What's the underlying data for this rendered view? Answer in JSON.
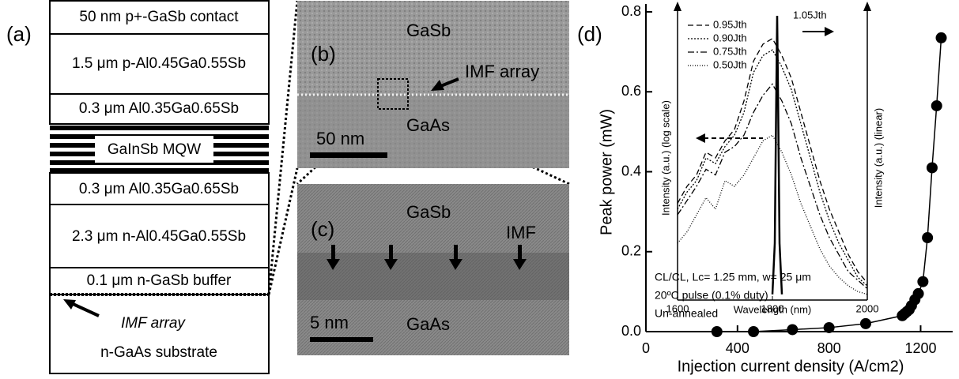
{
  "panel_a": {
    "label": "(a)",
    "layers": [
      "50 nm p+-GaSb contact",
      "1.5 μm p-Al0.45Ga0.55Sb",
      "0.3 μm Al0.35Ga0.65Sb",
      "GaInSb MQW",
      "0.3 μm Al0.35Ga0.65Sb",
      "2.3 μm n-Al0.45Ga0.55Sb",
      "0.1 μm n-GaSb buffer"
    ],
    "imf_label": "IMF array",
    "substrate": "n-GaAs substrate"
  },
  "panel_b": {
    "label": "(b)",
    "top": "GaSb",
    "bottom": "GaAs",
    "scale": "50 nm",
    "imf": "IMF array"
  },
  "panel_c": {
    "label": "(c)",
    "top": "GaSb",
    "bottom": "GaAs",
    "scale": "5 nm",
    "imf": "IMF"
  },
  "chart_data": {
    "type": "scatter",
    "panel_label": "(d)",
    "xlabel": "Injection current density (A/cm2)",
    "ylabel": "Peak power (mW)",
    "color": "#000000",
    "x": [
      310,
      470,
      640,
      800,
      960,
      1120,
      1130,
      1140,
      1150,
      1160,
      1175,
      1190,
      1210,
      1230,
      1250,
      1270,
      1290
    ],
    "values": [
      0.0,
      0.0,
      0.005,
      0.01,
      0.02,
      0.04,
      0.045,
      0.05,
      0.055,
      0.065,
      0.08,
      0.095,
      0.125,
      0.235,
      0.41,
      0.565,
      0.735
    ],
    "xlim": [
      0,
      1340
    ],
    "ylim": [
      0,
      0.8
    ],
    "xticks": [
      0,
      400,
      800,
      1200
    ],
    "yticks": [
      {
        "value": 0,
        "label": "0.0"
      },
      0.2,
      0.4,
      0.6,
      0.8
    ],
    "annotations": [
      "CL/CL, Lc= 1.25 mm, w= 25 μm",
      "20ºC pulse (0.1% duty)",
      "Un-annealed"
    ],
    "inset": {
      "type": "line",
      "xlabel": "Wavelength (nm)",
      "ylabel_left": "Intensity (a.u.) (log scale)",
      "ylabel_right": "Intensity (a.u.) (linear)",
      "xlim": [
        1600,
        2000
      ],
      "ylim": [
        0,
        1
      ],
      "xticks": [
        1600,
        1800,
        2000
      ],
      "series": [
        {
          "name": "0.95Jth",
          "dash": "7,4",
          "x": [
            1600,
            1620,
            1640,
            1660,
            1680,
            1700,
            1720,
            1740,
            1760,
            1780,
            1800,
            1820,
            1840,
            1860,
            1880,
            1900,
            1920,
            1940,
            1960,
            1980,
            2000
          ],
          "values": [
            0.34,
            0.4,
            0.44,
            0.52,
            0.5,
            0.56,
            0.6,
            0.7,
            0.84,
            0.9,
            0.92,
            0.86,
            0.78,
            0.66,
            0.54,
            0.42,
            0.32,
            0.24,
            0.16,
            0.1,
            0.06
          ]
        },
        {
          "name": "0.90Jth",
          "dash": "2,2",
          "x": [
            1600,
            1620,
            1640,
            1660,
            1680,
            1700,
            1720,
            1740,
            1760,
            1780,
            1800,
            1820,
            1840,
            1860,
            1880,
            1900,
            1920,
            1940,
            1960,
            1980,
            2000
          ],
          "values": [
            0.32,
            0.38,
            0.42,
            0.5,
            0.48,
            0.54,
            0.58,
            0.66,
            0.8,
            0.86,
            0.88,
            0.82,
            0.74,
            0.62,
            0.5,
            0.38,
            0.28,
            0.2,
            0.14,
            0.08,
            0.05
          ]
        },
        {
          "name": "0.75Jth",
          "dash": "8,3,2,3",
          "x": [
            1600,
            1620,
            1640,
            1660,
            1680,
            1700,
            1720,
            1740,
            1760,
            1780,
            1800,
            1820,
            1840,
            1860,
            1880,
            1900,
            1920,
            1940,
            1960,
            1980,
            2000
          ],
          "values": [
            0.3,
            0.35,
            0.4,
            0.46,
            0.44,
            0.52,
            0.54,
            0.58,
            0.66,
            0.72,
            0.76,
            0.7,
            0.62,
            0.5,
            0.4,
            0.3,
            0.22,
            0.16,
            0.1,
            0.07,
            0.04
          ]
        },
        {
          "name": "0.50Jth",
          "dash": "1,2",
          "x": [
            1600,
            1620,
            1640,
            1660,
            1680,
            1700,
            1720,
            1740,
            1760,
            1780,
            1800,
            1820,
            1840,
            1860,
            1880,
            1900,
            1920,
            1940,
            1960,
            1980,
            2000
          ],
          "values": [
            0.2,
            0.24,
            0.3,
            0.36,
            0.32,
            0.42,
            0.4,
            0.44,
            0.5,
            0.56,
            0.58,
            0.52,
            0.44,
            0.34,
            0.26,
            0.18,
            0.12,
            0.08,
            0.05,
            0.03,
            0.02
          ]
        },
        {
          "name": "1.05Jth",
          "dash": "none",
          "x": [
            1800,
            1805,
            1808,
            1810,
            1812,
            1815,
            1820
          ],
          "values": [
            0.02,
            0.2,
            0.7,
            1.0,
            0.7,
            0.2,
            0.02
          ]
        }
      ]
    }
  }
}
